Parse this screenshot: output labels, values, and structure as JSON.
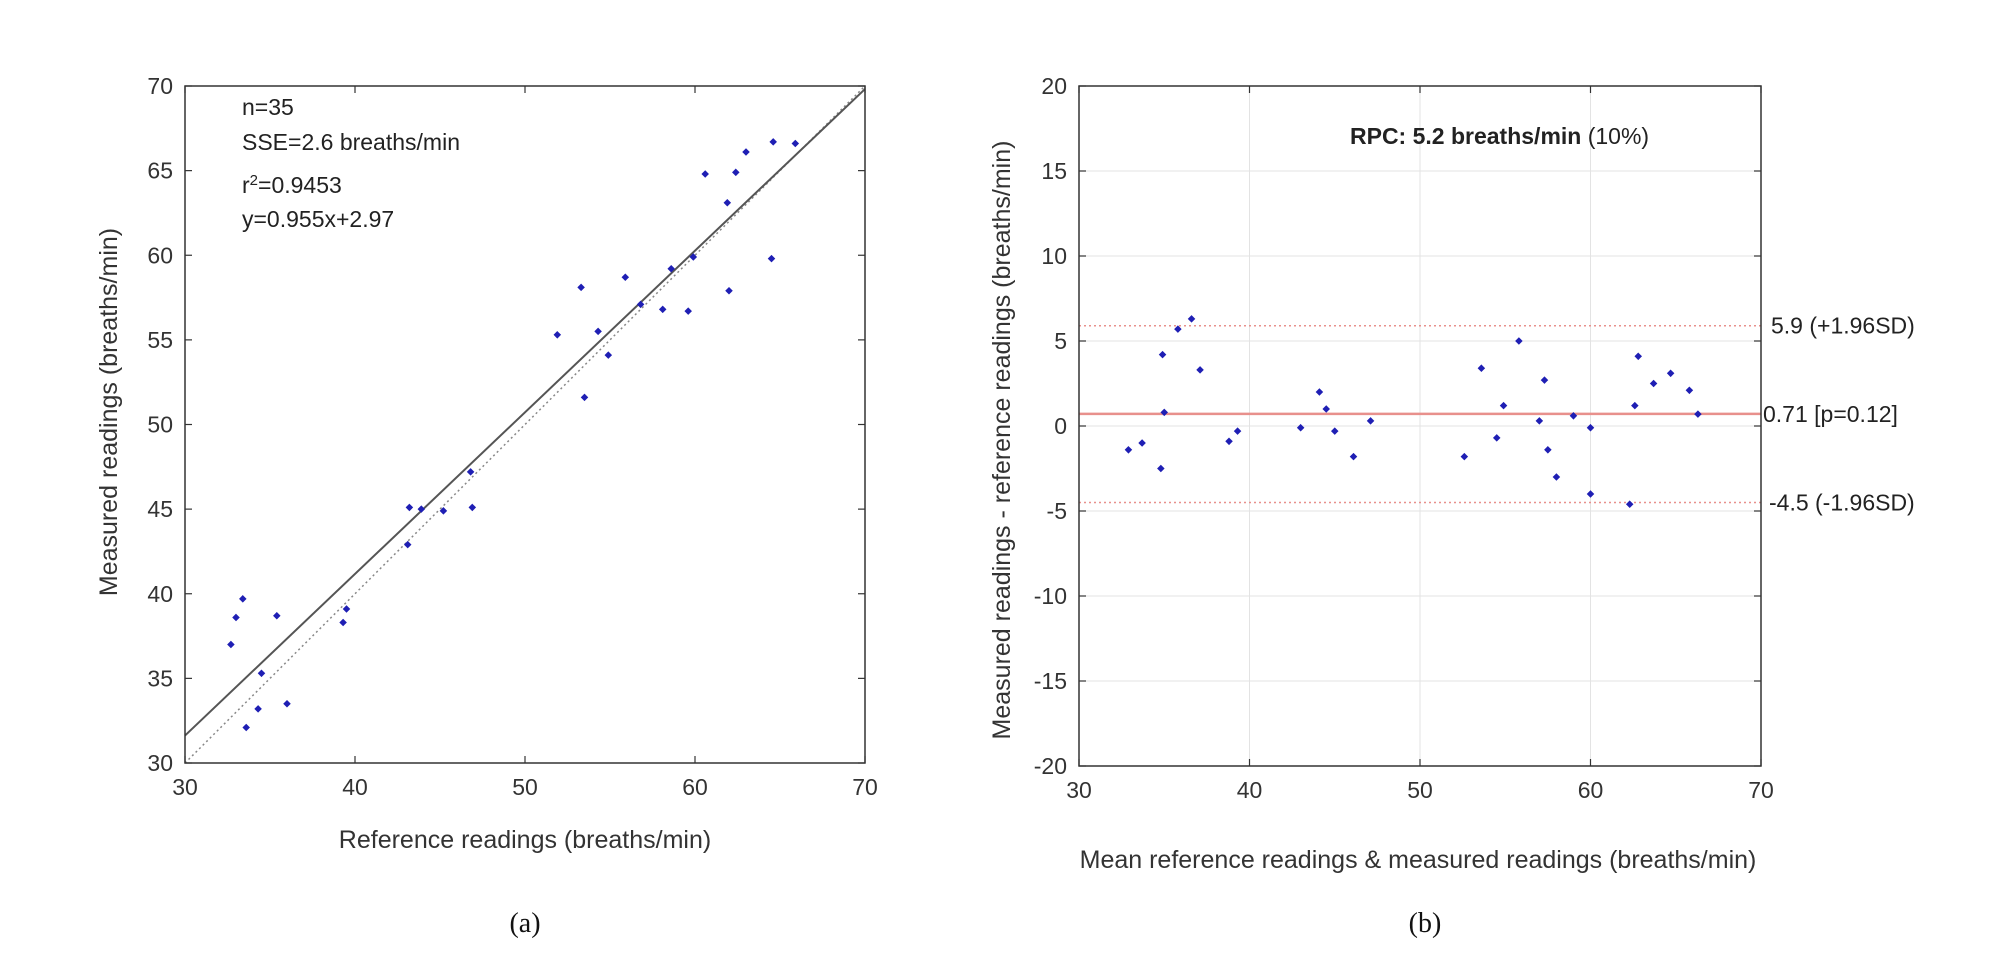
{
  "chart_data": [
    {
      "type": "scatter",
      "panel": "(a)",
      "xlabel": "Reference readings  (breaths/min)",
      "ylabel": "Measured readings (breaths/min)",
      "xlim": [
        30,
        70
      ],
      "ylim": [
        30,
        70
      ],
      "xticks": [
        30,
        40,
        50,
        60,
        70
      ],
      "yticks": [
        30,
        35,
        40,
        45,
        50,
        55,
        60,
        65,
        70
      ],
      "annotations": [
        "n=35",
        "SSE=2.6 breaths/min",
        "r",
        "2",
        "=0.9453",
        "y=0.955x+2.97"
      ],
      "fit_line": {
        "slope": 0.955,
        "intercept": 2.97,
        "color": "#555555"
      },
      "identity_line": {
        "slope": 1,
        "intercept": 0,
        "style": "dotted"
      },
      "marker_color": "#1f1fb4",
      "series": [
        {
          "name": "readings",
          "x": [
            32.7,
            33.0,
            33.4,
            33.6,
            34.3,
            34.5,
            35.4,
            36.0,
            39.3,
            39.5,
            43.1,
            43.2,
            43.9,
            45.2,
            46.8,
            46.9,
            51.9,
            53.3,
            53.5,
            54.3,
            54.9,
            55.9,
            56.8,
            58.1,
            58.6,
            59.6,
            59.9,
            60.6,
            61.9,
            62.0,
            62.4,
            63.0,
            64.5,
            64.6,
            65.9
          ],
          "y": [
            37.0,
            38.6,
            39.7,
            32.1,
            33.2,
            35.3,
            38.7,
            33.5,
            38.3,
            39.1,
            42.9,
            45.1,
            45.0,
            44.9,
            47.2,
            45.1,
            55.3,
            58.1,
            51.6,
            55.5,
            54.1,
            58.7,
            57.1,
            56.8,
            59.2,
            56.7,
            59.9,
            64.8,
            63.1,
            57.9,
            64.9,
            66.1,
            59.8,
            66.7,
            66.6
          ]
        }
      ]
    },
    {
      "type": "scatter",
      "panel": "(b)",
      "title_bold": "RPC: 5.2 breaths/min",
      "title_rest": " (10%)",
      "xlabel": "Mean reference readings  & measured readings (breaths/min)",
      "ylabel": "Measured readings - reference readings  (breaths/min)",
      "xlim": [
        30,
        70
      ],
      "ylim": [
        -20,
        20
      ],
      "xticks": [
        30,
        40,
        50,
        60,
        70
      ],
      "yticks": [
        -20,
        -15,
        -10,
        -5,
        0,
        5,
        10,
        15,
        20
      ],
      "grid": true,
      "mean_line": {
        "value": 0.71,
        "label": "0.71 [p=0.12]",
        "color": "#e8908c"
      },
      "upper_loa": {
        "value": 5.9,
        "label": "5.9 (+1.96SD)",
        "style": "dotted"
      },
      "lower_loa": {
        "value": -4.5,
        "label": "-4.5 (-1.96SD)",
        "style": "dotted"
      },
      "marker_color": "#1f1fb4",
      "series": [
        {
          "name": "differences",
          "x": [
            32.9,
            33.7,
            34.8,
            34.9,
            35.0,
            35.8,
            36.6,
            37.1,
            38.8,
            39.3,
            43.0,
            44.1,
            44.5,
            45.0,
            46.1,
            47.1,
            52.6,
            53.6,
            54.5,
            54.9,
            55.8,
            57.0,
            57.3,
            57.5,
            58.0,
            59.0,
            60.0,
            60.0,
            62.3,
            62.6,
            62.8,
            63.7,
            64.7,
            65.8,
            66.3
          ],
          "y": [
            -1.4,
            -1.0,
            -2.5,
            4.2,
            0.8,
            5.7,
            6.3,
            3.3,
            -0.9,
            -0.3,
            -0.1,
            2.0,
            1.0,
            -0.3,
            -1.8,
            0.3,
            -1.8,
            3.4,
            -0.7,
            1.2,
            5.0,
            0.3,
            2.7,
            -1.4,
            -3.0,
            0.6,
            -0.1,
            -4.0,
            -4.6,
            1.2,
            4.1,
            2.5,
            3.1,
            2.1,
            0.7
          ]
        }
      ]
    }
  ]
}
